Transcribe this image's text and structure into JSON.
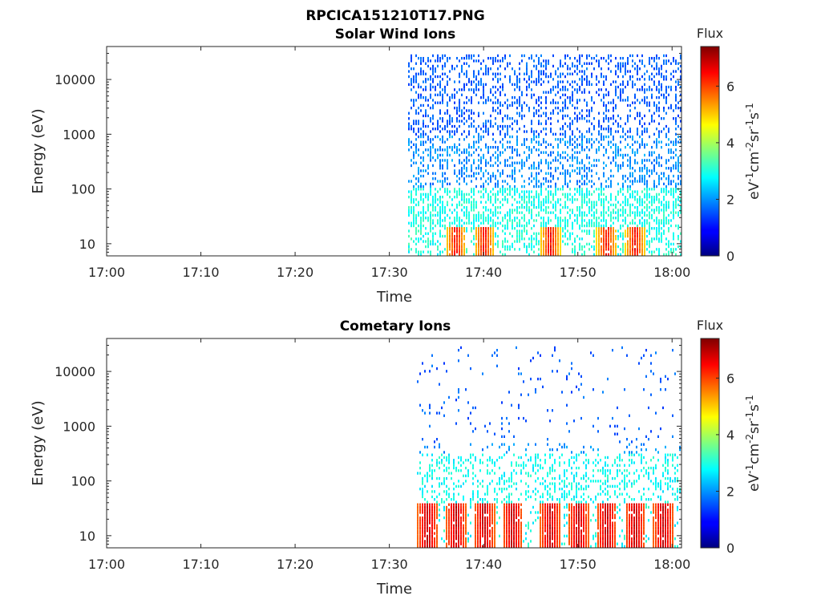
{
  "figure": {
    "title_line1": "RPCICA151210T17.PNG",
    "title_line2": "Solar Wind Ions"
  },
  "chart_data": [
    {
      "type": "heatmap",
      "title": "Solar Wind Ions",
      "xlabel": "Time",
      "ylabel": "Energy (eV)",
      "x_ticks": [
        "17:00",
        "17:10",
        "17:20",
        "17:30",
        "17:40",
        "17:50",
        "18:00"
      ],
      "xlim": [
        "17:00",
        "18:01"
      ],
      "y_scale": "log",
      "y_ticks": [
        "10",
        "100",
        "1000",
        "10000"
      ],
      "ylim": [
        6,
        40000
      ],
      "data_start": "17:32",
      "colorbar": {
        "label": "Flux",
        "unit": "eV-1cm-2sr-1s-1",
        "ticks": [
          "0",
          "2",
          "4",
          "6"
        ],
        "range": [
          0,
          7.4
        ],
        "colormap": "jet"
      },
      "features": [
        {
          "energy_range_eV": [
            1000,
            30000
          ],
          "flux": 1.3,
          "description": "sparse"
        },
        {
          "energy_range_eV": [
            20,
            100
          ],
          "flux": 2.6
        },
        {
          "energy_range_eV": [
            6,
            30
          ],
          "flux": 4.5,
          "peak_flux": 6.8
        }
      ],
      "bursts": [
        "17:37",
        "17:40",
        "17:47",
        "17:53",
        "17:56"
      ],
      "grid": false
    },
    {
      "type": "heatmap",
      "title": "Cometary Ions",
      "xlabel": "Time",
      "ylabel": "Energy (eV)",
      "x_ticks": [
        "17:00",
        "17:10",
        "17:20",
        "17:30",
        "17:40",
        "17:50",
        "18:00"
      ],
      "xlim": [
        "17:00",
        "18:01"
      ],
      "y_scale": "log",
      "y_ticks": [
        "10",
        "100",
        "1000",
        "10000"
      ],
      "ylim": [
        6,
        40000
      ],
      "data_start": "17:33",
      "colorbar": {
        "label": "Flux",
        "unit": "eV-1cm-2sr-1s-1",
        "ticks": [
          "0",
          "2",
          "4",
          "6"
        ],
        "range": [
          0,
          7.4
        ],
        "colormap": "jet"
      },
      "features": [
        {
          "energy_range_eV": [
            500,
            30000
          ],
          "flux": 1.3,
          "description": "very sparse"
        },
        {
          "energy_range_eV": [
            40,
            300
          ],
          "flux": 2.5
        },
        {
          "energy_range_eV": [
            6,
            45
          ],
          "flux": 5.5,
          "peak_flux": 7.2
        }
      ],
      "bursts": [
        "17:34",
        "17:37",
        "17:40",
        "17:43",
        "17:47",
        "17:50",
        "17:53",
        "17:56",
        "17:59"
      ],
      "grid": false
    }
  ]
}
